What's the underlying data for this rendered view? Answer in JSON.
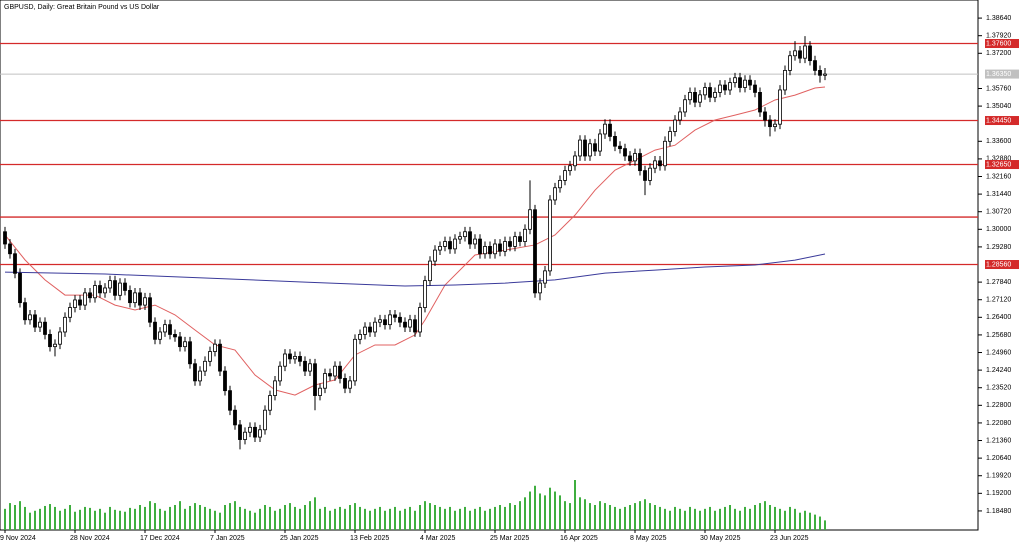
{
  "chart_data": {
    "type": "candlestick",
    "title": "GBPUSD, Daily:  Great Britain Pound vs US Dollar",
    "categories": [
      "9 Nov 2024",
      null,
      null,
      null,
      null,
      null,
      null,
      null,
      null,
      null,
      null,
      null,
      null,
      null,
      "28 Nov 2024",
      null,
      null,
      null,
      null,
      null,
      null,
      null,
      null,
      null,
      null,
      null,
      null,
      null,
      "17 Dec 2024",
      null,
      null,
      null,
      null,
      null,
      null,
      null,
      null,
      null,
      null,
      null,
      null,
      null,
      "7 Jan 2025",
      null,
      null,
      null,
      null,
      null,
      null,
      null,
      null,
      null,
      null,
      null,
      null,
      null,
      "25 Jan 2025",
      null,
      null,
      null,
      null,
      null,
      null,
      null,
      null,
      null,
      null,
      null,
      null,
      null,
      "13 Feb 2025",
      null,
      null,
      null,
      null,
      null,
      null,
      null,
      null,
      null,
      null,
      null,
      null,
      null,
      "4 Mar 2025",
      null,
      null,
      null,
      null,
      null,
      null,
      null,
      null,
      null,
      null,
      null,
      null,
      null,
      "25 Mar 2025",
      null,
      null,
      null,
      null,
      null,
      null,
      null,
      null,
      null,
      null,
      null,
      null,
      null,
      "16 Apr 2025",
      null,
      null,
      null,
      null,
      null,
      null,
      null,
      null,
      null,
      null,
      null,
      null,
      null,
      "8 May 2025",
      null,
      null,
      null,
      null,
      null,
      null,
      null,
      null,
      null,
      null,
      null,
      null,
      null,
      "30 May 2025",
      null,
      null,
      null,
      null,
      null,
      null,
      null,
      null,
      null,
      null,
      null,
      null,
      null,
      "23 Jun 2025",
      null,
      null,
      null,
      null,
      null,
      null,
      null,
      null,
      null,
      null
    ],
    "open": [
      1.299,
      1.294,
      1.29,
      1.282,
      1.27,
      1.263,
      1.265,
      1.26,
      1.262,
      1.257,
      1.252,
      1.253,
      1.258,
      1.264,
      1.268,
      1.2711,
      1.269,
      1.274,
      1.272,
      1.277,
      1.274,
      1.276,
      1.279,
      1.273,
      1.278,
      1.275,
      1.27,
      1.274,
      1.269,
      1.272,
      1.262,
      1.255,
      1.258,
      1.261,
      1.257,
      1.256,
      1.252,
      1.254,
      1.245,
      1.238,
      1.242,
      1.246,
      1.25,
      1.253,
      1.242,
      1.234,
      1.226,
      1.22,
      1.214,
      1.217,
      1.219,
      1.215,
      1.218,
      1.226,
      1.232,
      1.238,
      1.244,
      1.249,
      1.247,
      1.248,
      1.246,
      1.242,
      1.245,
      1.232,
      1.235,
      1.241,
      1.24,
      1.244,
      1.239,
      1.235,
      1.238,
      1.255,
      1.257,
      1.26,
      1.258,
      1.262,
      1.263,
      1.261,
      1.265,
      1.264,
      1.262,
      1.26,
      1.263,
      1.258,
      1.268,
      1.279,
      1.287,
      1.2915,
      1.293,
      1.295,
      1.292,
      1.296,
      1.297,
      1.299,
      1.294,
      1.296,
      1.29,
      1.293,
      1.29,
      1.294,
      1.291,
      1.295,
      1.293,
      1.297,
      1.295,
      1.3,
      1.308,
      1.274,
      1.278,
      1.283,
      1.312,
      1.317,
      1.32,
      1.324,
      1.326,
      1.33,
      1.3365,
      1.33,
      1.335,
      1.332,
      1.339,
      1.343,
      1.338,
      1.334,
      1.333,
      1.33,
      1.328,
      1.331,
      1.324,
      1.32,
      1.325,
      1.328,
      1.326,
      1.336,
      1.34,
      1.3447,
      1.348,
      1.353,
      1.356,
      1.352,
      1.355,
      1.358,
      1.354,
      1.356,
      1.359,
      1.357,
      1.36,
      1.362,
      1.358,
      1.361,
      1.359,
      1.356,
      1.348,
      1.3447,
      1.342,
      1.343,
      1.357,
      1.365,
      1.371,
      1.373,
      1.37,
      1.375,
      1.369,
      1.365,
      1.363
    ],
    "high": [
      1.301,
      1.296,
      1.292,
      1.284,
      1.272,
      1.267,
      1.267,
      1.264,
      1.264,
      1.259,
      1.255,
      1.26,
      1.266,
      1.27,
      1.2731,
      1.2731,
      1.276,
      1.276,
      1.279,
      1.279,
      1.278,
      1.281,
      1.281,
      1.28,
      1.28,
      1.277,
      1.276,
      1.276,
      1.274,
      1.274,
      1.264,
      1.26,
      1.263,
      1.263,
      1.259,
      1.258,
      1.256,
      1.256,
      1.247,
      1.244,
      1.248,
      1.252,
      1.255,
      1.255,
      1.244,
      1.236,
      1.228,
      1.222,
      1.219,
      1.221,
      1.221,
      1.22,
      1.228,
      1.234,
      1.24,
      1.246,
      1.251,
      1.251,
      1.25,
      1.25,
      1.248,
      1.247,
      1.247,
      1.237,
      1.243,
      1.243,
      1.246,
      1.246,
      1.241,
      1.24,
      1.257,
      1.259,
      1.262,
      1.262,
      1.264,
      1.265,
      1.265,
      1.267,
      1.267,
      1.266,
      1.264,
      1.265,
      1.265,
      1.27,
      1.281,
      1.289,
      1.2935,
      1.295,
      1.297,
      1.297,
      1.298,
      1.299,
      1.301,
      1.301,
      1.298,
      1.298,
      1.295,
      1.295,
      1.296,
      1.296,
      1.297,
      1.297,
      1.299,
      1.299,
      1.302,
      1.32,
      1.31,
      1.28,
      1.285,
      1.314,
      1.319,
      1.322,
      1.326,
      1.328,
      1.332,
      1.3385,
      1.3385,
      1.337,
      1.337,
      1.341,
      1.345,
      1.345,
      1.34,
      1.336,
      1.335,
      1.332,
      1.333,
      1.333,
      1.326,
      1.327,
      1.33,
      1.33,
      1.338,
      1.342,
      1.3467,
      1.35,
      1.355,
      1.358,
      1.358,
      1.357,
      1.36,
      1.36,
      1.358,
      1.361,
      1.361,
      1.362,
      1.364,
      1.364,
      1.363,
      1.363,
      1.361,
      1.358,
      1.35,
      1.3467,
      1.345,
      1.359,
      1.367,
      1.373,
      1.377,
      1.375,
      1.379,
      1.377,
      1.371,
      1.367,
      1.366
    ],
    "low": [
      1.292,
      1.288,
      1.28,
      1.268,
      1.261,
      1.261,
      1.258,
      1.258,
      1.255,
      1.25,
      1.248,
      1.251,
      1.256,
      1.262,
      1.266,
      1.267,
      1.267,
      1.27,
      1.27,
      1.272,
      1.272,
      1.274,
      1.271,
      1.271,
      1.273,
      1.268,
      1.268,
      1.267,
      1.267,
      1.26,
      1.253,
      1.253,
      1.256,
      1.255,
      1.254,
      1.25,
      1.25,
      1.243,
      1.236,
      1.236,
      1.24,
      1.244,
      1.248,
      1.24,
      1.232,
      1.224,
      1.218,
      1.21,
      1.212,
      1.215,
      1.213,
      1.213,
      1.216,
      1.224,
      1.23,
      1.236,
      1.242,
      1.245,
      1.245,
      1.244,
      1.24,
      1.24,
      1.226,
      1.23,
      1.233,
      1.238,
      1.238,
      1.237,
      1.233,
      1.233,
      1.236,
      1.253,
      1.255,
      1.256,
      1.256,
      1.26,
      1.259,
      1.259,
      1.262,
      1.26,
      1.258,
      1.258,
      1.256,
      1.256,
      1.266,
      1.277,
      1.285,
      1.2895,
      1.291,
      1.29,
      1.29,
      1.294,
      1.295,
      1.292,
      1.292,
      1.288,
      1.288,
      1.288,
      1.288,
      1.289,
      1.289,
      1.291,
      1.291,
      1.293,
      1.293,
      1.298,
      1.272,
      1.271,
      1.276,
      1.281,
      1.31,
      1.315,
      1.318,
      1.322,
      1.324,
      1.328,
      1.328,
      1.328,
      1.33,
      1.33,
      1.337,
      1.336,
      1.332,
      1.331,
      1.328,
      1.326,
      1.326,
      1.322,
      1.314,
      1.318,
      1.323,
      1.324,
      1.324,
      1.334,
      1.338,
      1.3427,
      1.346,
      1.351,
      1.35,
      1.35,
      1.353,
      1.352,
      1.352,
      1.354,
      1.355,
      1.355,
      1.358,
      1.356,
      1.356,
      1.357,
      1.354,
      1.346,
      1.342,
      1.338,
      1.34,
      1.341,
      1.355,
      1.363,
      1.369,
      1.368,
      1.368,
      1.367,
      1.363,
      1.36,
      1.361
    ],
    "close": [
      1.294,
      1.29,
      1.282,
      1.27,
      1.263,
      1.265,
      1.26,
      1.262,
      1.257,
      1.252,
      1.253,
      1.258,
      1.264,
      1.268,
      1.2711,
      1.269,
      1.274,
      1.272,
      1.277,
      1.274,
      1.276,
      1.279,
      1.273,
      1.278,
      1.275,
      1.27,
      1.274,
      1.269,
      1.272,
      1.262,
      1.255,
      1.258,
      1.261,
      1.257,
      1.256,
      1.252,
      1.254,
      1.245,
      1.238,
      1.242,
      1.246,
      1.25,
      1.253,
      1.242,
      1.234,
      1.226,
      1.22,
      1.214,
      1.217,
      1.219,
      1.215,
      1.218,
      1.226,
      1.232,
      1.238,
      1.244,
      1.249,
      1.247,
      1.248,
      1.246,
      1.242,
      1.245,
      1.232,
      1.235,
      1.241,
      1.24,
      1.244,
      1.239,
      1.235,
      1.238,
      1.255,
      1.257,
      1.26,
      1.258,
      1.262,
      1.263,
      1.261,
      1.265,
      1.264,
      1.262,
      1.26,
      1.263,
      1.258,
      1.268,
      1.279,
      1.287,
      1.2915,
      1.293,
      1.295,
      1.292,
      1.296,
      1.297,
      1.299,
      1.294,
      1.296,
      1.29,
      1.293,
      1.29,
      1.294,
      1.291,
      1.295,
      1.293,
      1.297,
      1.295,
      1.3,
      1.308,
      1.274,
      1.278,
      1.283,
      1.312,
      1.317,
      1.32,
      1.324,
      1.326,
      1.33,
      1.3365,
      1.33,
      1.335,
      1.332,
      1.339,
      1.343,
      1.338,
      1.334,
      1.333,
      1.33,
      1.328,
      1.331,
      1.324,
      1.32,
      1.325,
      1.328,
      1.326,
      1.336,
      1.34,
      1.3447,
      1.348,
      1.353,
      1.356,
      1.352,
      1.355,
      1.358,
      1.354,
      1.356,
      1.359,
      1.357,
      1.36,
      1.362,
      1.358,
      1.361,
      1.359,
      1.356,
      1.348,
      1.3447,
      1.342,
      1.343,
      1.357,
      1.365,
      1.371,
      1.373,
      1.37,
      1.375,
      1.369,
      1.365,
      1.363,
      1.3635
    ],
    "volume": {
      "color": "#3fae3f",
      "values": [
        22,
        28,
        26,
        30,
        24,
        18,
        20,
        22,
        25,
        27,
        24,
        20,
        22,
        26,
        19,
        21,
        24,
        23,
        20,
        22,
        18,
        24,
        21,
        20,
        19,
        23,
        22,
        26,
        24,
        30,
        28,
        22,
        20,
        24,
        26,
        30,
        22,
        25,
        28,
        26,
        24,
        22,
        20,
        18,
        26,
        28,
        30,
        24,
        22,
        20,
        18,
        22,
        26,
        24,
        20,
        22,
        26,
        28,
        24,
        22,
        26,
        30,
        34,
        22,
        24,
        20,
        22,
        24,
        22,
        26,
        28,
        24,
        22,
        20,
        22,
        24,
        20,
        22,
        24,
        20,
        22,
        24,
        20,
        26,
        30,
        28,
        26,
        24,
        22,
        24,
        20,
        22,
        24,
        20,
        22,
        24,
        20,
        22,
        24,
        26,
        24,
        28,
        26,
        30,
        34,
        40,
        46,
        38,
        36,
        44,
        40,
        36,
        30,
        28,
        52,
        34,
        32,
        28,
        26,
        30,
        28,
        26,
        24,
        22,
        24,
        26,
        28,
        30,
        32,
        28,
        26,
        24,
        22,
        20,
        24,
        22,
        20,
        24,
        22,
        20,
        22,
        24,
        20,
        22,
        24,
        26,
        22,
        20,
        24,
        22,
        26,
        28,
        30,
        26,
        24,
        22,
        20,
        24,
        22,
        18,
        20,
        18,
        16,
        14,
        10
      ]
    },
    "moving_averages": [
      {
        "color": "#e06060",
        "x": [
          0,
          4,
          8,
          12,
          18,
          22,
          26,
          30,
          34,
          38,
          42,
          46,
          50,
          54,
          58,
          62,
          66,
          70,
          74,
          78,
          82,
          84,
          88,
          94,
          100,
          106,
          110,
          114,
          118,
          122,
          126,
          130,
          134,
          138,
          142,
          146,
          150,
          154,
          158,
          162,
          164
        ],
        "values": [
          1.2977,
          1.2875,
          1.2793,
          1.2731,
          1.2731,
          1.269,
          1.267,
          1.269,
          1.265,
          1.2588,
          1.2527,
          1.2506,
          1.2404,
          1.2343,
          1.2322,
          1.2363,
          1.2384,
          1.2486,
          1.2527,
          1.2527,
          1.2568,
          1.2629,
          1.2772,
          1.2895,
          1.2915,
          1.2936,
          1.2977,
          1.3058,
          1.316,
          1.3242,
          1.3283,
          1.3324,
          1.3344,
          1.3406,
          1.3447,
          1.3467,
          1.3488,
          1.3529,
          1.3549,
          1.3578,
          1.3582
        ]
      },
      {
        "color": "#3a3a9a",
        "x": [
          0,
          20,
          40,
          60,
          80,
          90,
          100,
          110,
          120,
          130,
          140,
          150,
          158,
          164
        ],
        "values": [
          1.2825,
          1.2817,
          1.2801,
          1.2784,
          1.2768,
          1.2772,
          1.278,
          1.2793,
          1.2821,
          1.2833,
          1.2846,
          1.2854,
          1.2874,
          1.2899
        ]
      }
    ],
    "levels": [
      {
        "value": 1.376,
        "label": "1.37600"
      },
      {
        "value": 1.3445,
        "label": "1.34450"
      },
      {
        "value": 1.3265,
        "label": "1.32650"
      },
      {
        "value": 1.305
      },
      {
        "value": 1.2856,
        "label": "1.28560"
      }
    ],
    "level_color": "#d42a2a",
    "current_price": {
      "value": 1.3635,
      "label": "1.36350"
    },
    "up_color": "#ffffff",
    "down_color": "#000000",
    "ylim": [
      1.177,
      1.3938
    ],
    "yticks": [
      {
        "value": 1.3864,
        "label": "1.38640"
      },
      {
        "value": 1.3792,
        "label": "1.37920"
      },
      {
        "value": 1.372,
        "label": "1.37200"
      },
      {
        "value": 1.3576,
        "label": "1.35760"
      },
      {
        "value": 1.3504,
        "label": "1.35040"
      },
      {
        "value": 1.336,
        "label": "1.33600"
      },
      {
        "value": 1.3288,
        "label": "1.32880"
      },
      {
        "value": 1.3216,
        "label": "1.32160"
      },
      {
        "value": 1.3144,
        "label": "1.31440"
      },
      {
        "value": 1.3072,
        "label": "1.30720"
      },
      {
        "value": 1.3,
        "label": "1.30000"
      },
      {
        "value": 1.2928,
        "label": "1.29280"
      },
      {
        "value": 1.2784,
        "label": "1.27840"
      },
      {
        "value": 1.2712,
        "label": "1.27120"
      },
      {
        "value": 1.264,
        "label": "1.26400"
      },
      {
        "value": 1.2568,
        "label": "1.25680"
      },
      {
        "value": 1.2496,
        "label": "1.24960"
      },
      {
        "value": 1.2424,
        "label": "1.24240"
      },
      {
        "value": 1.2352,
        "label": "1.23520"
      },
      {
        "value": 1.228,
        "label": "1.22800"
      },
      {
        "value": 1.2208,
        "label": "1.22080"
      },
      {
        "value": 1.2136,
        "label": "1.21360"
      },
      {
        "value": 1.2064,
        "label": "1.20640"
      },
      {
        "value": 1.1992,
        "label": "1.19920"
      },
      {
        "value": 1.192,
        "label": "1.19200"
      },
      {
        "value": 1.1848,
        "label": "1.18480"
      }
    ]
  }
}
